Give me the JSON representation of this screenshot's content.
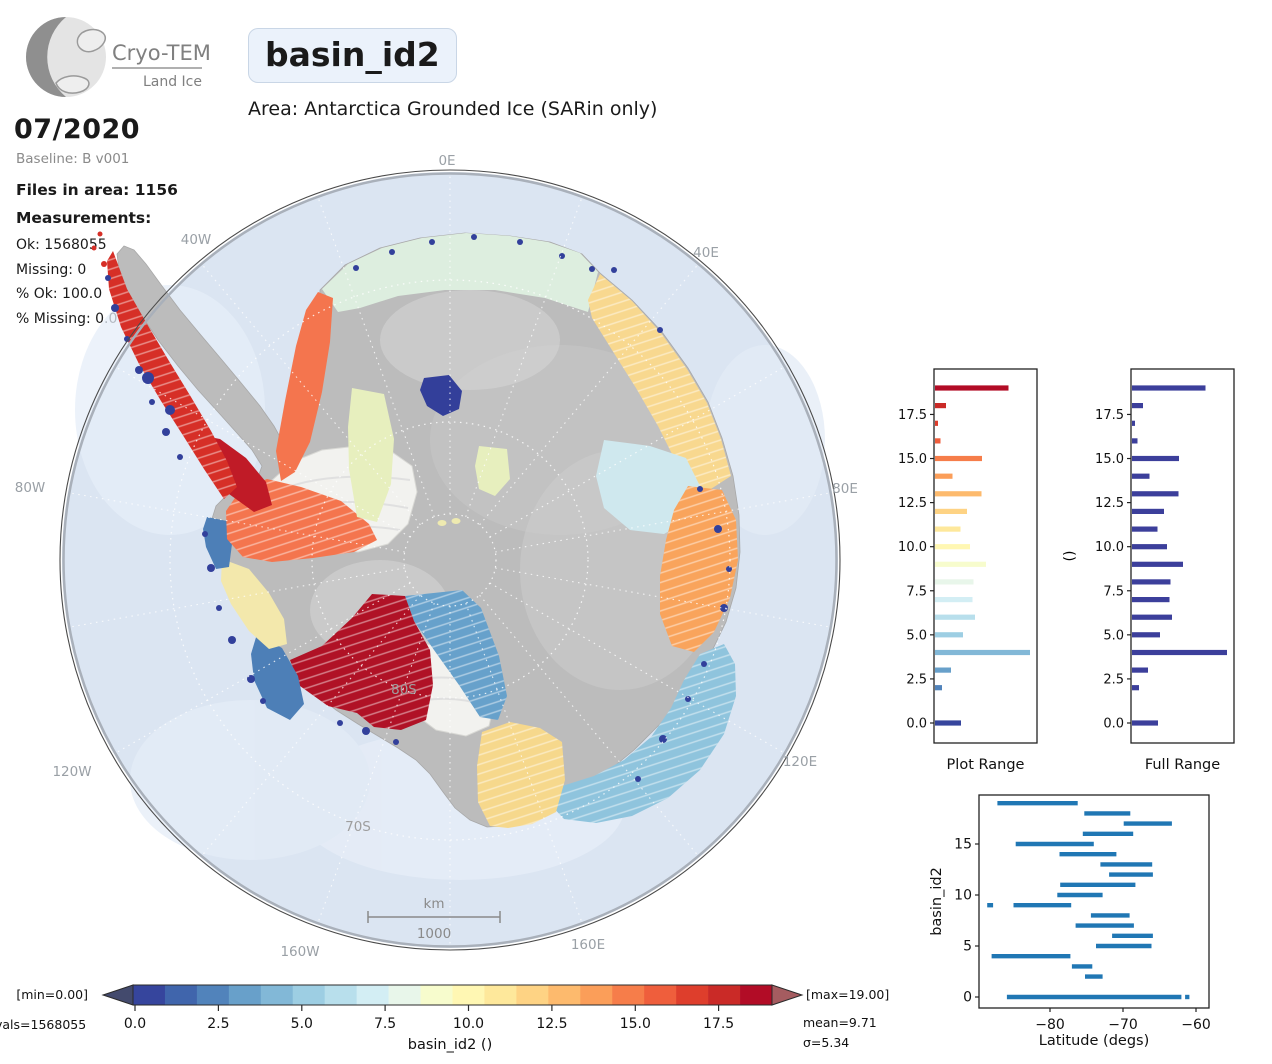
{
  "header": {
    "logo": {
      "name": "Cryo-TEMPO",
      "subname": "Land Ice"
    },
    "title": "basin_id2",
    "subtitle": "Area: Antarctica Grounded Ice (SARin only)",
    "date": "07/2020",
    "baseline": "Baseline: B v001"
  },
  "stats": {
    "files": "Files in area: 1156",
    "measurements": "Measurements:",
    "ok": "Ok: 1568055",
    "missing": "Missing: 0",
    "pct_ok": "% Ok: 100.0",
    "pct_missing": "% Missing: 0.0"
  },
  "map": {
    "lon_labels": [
      "0E",
      "40W",
      "40E",
      "80W",
      "80E",
      "120W",
      "120E",
      "160W",
      "160E"
    ],
    "lat_labels": {
      "s80": "80S",
      "s70": "70S"
    },
    "scalebar": {
      "unit": "km",
      "value": "1000"
    },
    "ocean_color": "#dbe5f2",
    "land_color": "#bcbcbc",
    "shelf_color": "#f2f2ef"
  },
  "colorbar": {
    "min_label": "[min=0.00]",
    "max_label": "[max=19.00]",
    "vals_label": "vals=1568055",
    "mean_label": "mean=9.71",
    "sigma_label": "σ=5.34",
    "axis_label": "basin_id2 ()",
    "tick_labels": [
      "0.0",
      "2.5",
      "5.0",
      "7.5",
      "10.0",
      "12.5",
      "15.0",
      "17.5"
    ],
    "segment_colors": [
      "#36459d",
      "#4065ac",
      "#5183bb",
      "#68a0ca",
      "#82b8d7",
      "#9dcee3",
      "#b8dfec",
      "#d3eef4",
      "#e8f6ea",
      "#f7fccd",
      "#fff7b3",
      "#fee89b",
      "#fed384",
      "#fdba6d",
      "#fb9e59",
      "#f67d4a",
      "#ef5e3c",
      "#de3e2c",
      "#ca2a27",
      "#b20c26"
    ],
    "under_color": "#434a6d",
    "over_color": "#a55c60"
  },
  "chart_data": [
    {
      "id": "plot_range",
      "type": "bar",
      "orientation": "horizontal",
      "title": "Plot Range",
      "categories": [
        0,
        1,
        2,
        3,
        4,
        5,
        6,
        7,
        8,
        9,
        10,
        11,
        12,
        13,
        14,
        15,
        16,
        17,
        18,
        19
      ],
      "values_frac": [
        0.26,
        0,
        0.07,
        0.16,
        0.95,
        0.28,
        0.4,
        0.375,
        0.385,
        0.51,
        0.35,
        0.255,
        0.32,
        0.465,
        0.175,
        0.47,
        0.055,
        0.03,
        0.11,
        0.735
      ],
      "values_unit": "fraction_of_axis_width",
      "ytick_labels": [
        "0.0",
        "2.5",
        "5.0",
        "7.5",
        "10.0",
        "12.5",
        "15.0",
        "17.5"
      ],
      "bar_colors": "colormap",
      "ylim": [
        -0.55,
        19.55
      ]
    },
    {
      "id": "full_range",
      "type": "bar",
      "orientation": "horizontal",
      "title": "Full Range",
      "ylabel": "()",
      "categories": [
        0,
        1,
        2,
        3,
        4,
        5,
        6,
        7,
        8,
        9,
        10,
        11,
        12,
        13,
        14,
        15,
        16,
        17,
        18,
        19
      ],
      "values_frac": [
        0.26,
        0,
        0.07,
        0.16,
        0.95,
        0.28,
        0.4,
        0.375,
        0.385,
        0.51,
        0.35,
        0.255,
        0.32,
        0.465,
        0.175,
        0.47,
        0.055,
        0.03,
        0.11,
        0.735
      ],
      "values_unit": "fraction_of_axis_width",
      "ytick_labels": [
        "0.0",
        "2.5",
        "5.0",
        "7.5",
        "10.0",
        "12.5",
        "15.0",
        "17.5"
      ],
      "bar_color": "#3c3f9b",
      "ylim": [
        -0.55,
        19.55
      ]
    },
    {
      "id": "latitude_extent",
      "type": "segments",
      "xlabel": "Latitude (degs)",
      "ylabel": "basin_id2",
      "xticks": [
        -80,
        -70,
        -60
      ],
      "xtick_labels": [
        "−80",
        "−70",
        "−60"
      ],
      "yticks": [
        0,
        5,
        10,
        15
      ],
      "ytick_labels": [
        "0",
        "5",
        "10",
        "15"
      ],
      "xlim": [
        -89.7,
        -58.2
      ],
      "ylim": [
        -1,
        19.8
      ],
      "color": "#2077b4",
      "segments": [
        {
          "basin": 0,
          "spans": [
            [
              -85.9,
              -62.0
            ],
            [
              -61.5,
              -60.9
            ]
          ]
        },
        {
          "basin": 1,
          "spans": []
        },
        {
          "basin": 2,
          "spans": [
            [
              -75.2,
              -72.8
            ]
          ]
        },
        {
          "basin": 3,
          "spans": [
            [
              -77.0,
              -74.2
            ]
          ]
        },
        {
          "basin": 4,
          "spans": [
            [
              -88.0,
              -77.2
            ]
          ]
        },
        {
          "basin": 5,
          "spans": [
            [
              -73.7,
              -66.1
            ]
          ]
        },
        {
          "basin": 6,
          "spans": [
            [
              -71.5,
              -65.9
            ]
          ]
        },
        {
          "basin": 7,
          "spans": [
            [
              -76.5,
              -68.5
            ]
          ]
        },
        {
          "basin": 8,
          "spans": [
            [
              -74.4,
              -69.1
            ]
          ]
        },
        {
          "basin": 9,
          "spans": [
            [
              -88.6,
              -87.8
            ],
            [
              -85.0,
              -77.1
            ]
          ]
        },
        {
          "basin": 10,
          "spans": [
            [
              -79.0,
              -72.8
            ]
          ]
        },
        {
          "basin": 11,
          "spans": [
            [
              -78.6,
              -68.3
            ]
          ]
        },
        {
          "basin": 12,
          "spans": [
            [
              -71.9,
              -65.9
            ]
          ]
        },
        {
          "basin": 13,
          "spans": [
            [
              -73.1,
              -66.0
            ]
          ]
        },
        {
          "basin": 14,
          "spans": [
            [
              -78.7,
              -70.9
            ]
          ]
        },
        {
          "basin": 15,
          "spans": [
            [
              -84.7,
              -74.0
            ]
          ]
        },
        {
          "basin": 16,
          "spans": [
            [
              -75.5,
              -68.6
            ]
          ]
        },
        {
          "basin": 17,
          "spans": [
            [
              -69.9,
              -63.3
            ]
          ]
        },
        {
          "basin": 18,
          "spans": [
            [
              -75.3,
              -69.0
            ]
          ]
        },
        {
          "basin": 19,
          "spans": [
            [
              -87.2,
              -76.2
            ]
          ]
        }
      ]
    }
  ]
}
